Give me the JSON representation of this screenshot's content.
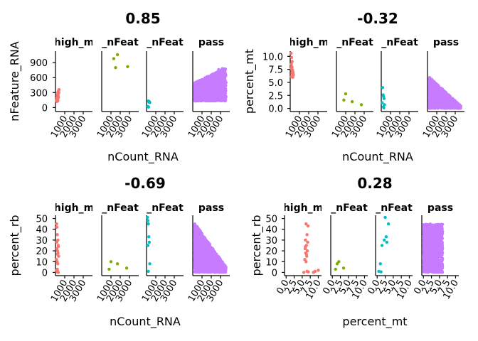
{
  "chart_data": [
    {
      "type": "scatter",
      "title": "0.85",
      "xlabel": "nCount_RNA",
      "ylabel": "nFeature_RNA",
      "facets": [
        "high_m",
        "_nFeat",
        "_nFeat",
        "pass"
      ],
      "xlim": [
        0,
        4000
      ],
      "x_ticks": [
        "1000",
        "2000",
        "3000"
      ],
      "ylim": [
        -80,
        1130
      ],
      "y_ticks": [
        "0",
        "300",
        "600",
        "900"
      ],
      "series": [
        {
          "facet": 0,
          "color": "#F8766D",
          "points": [
            [
              120,
              150
            ],
            [
              200,
              180
            ],
            [
              260,
              230
            ],
            [
              300,
              280
            ],
            [
              340,
              340
            ],
            [
              380,
              360
            ],
            [
              150,
              200
            ],
            [
              220,
              160
            ],
            [
              280,
              190
            ],
            [
              250,
              300
            ],
            [
              180,
              250
            ],
            [
              320,
              210
            ],
            [
              140,
              120
            ],
            [
              230,
              130
            ],
            [
              290,
              260
            ],
            [
              360,
              300
            ],
            [
              210,
              220
            ],
            [
              170,
              170
            ],
            [
              310,
              320
            ],
            [
              260,
              140
            ]
          ]
        },
        {
          "facet": 1,
          "color": "#7CAE00",
          "points": [
            [
              1300,
              980
            ],
            [
              1500,
              800
            ],
            [
              1700,
              1060
            ],
            [
              2800,
              820
            ]
          ]
        },
        {
          "facet": 2,
          "color": "#00BFC4",
          "points": [
            [
              200,
              130
            ],
            [
              250,
              110
            ],
            [
              300,
              120
            ],
            [
              350,
              100
            ],
            [
              150,
              20
            ],
            [
              220,
              10
            ]
          ]
        },
        {
          "facet": 3,
          "color": "#C77CFF",
          "dense": {
            "count": 1400,
            "x_range": [
              200,
              3600
            ],
            "y_min": 130,
            "y_max_at_x0": 500,
            "y_max_at_x1": 800
          },
          "points": [
            [
              3200,
              780
            ],
            [
              3500,
              750
            ],
            [
              3400,
              640
            ],
            [
              3000,
              700
            ],
            [
              2800,
              760
            ],
            [
              3600,
              500
            ]
          ]
        }
      ]
    },
    {
      "type": "scatter",
      "title": "-0.32",
      "xlabel": "nCount_RNA",
      "ylabel": "percent_mt",
      "facets": [
        "high_m",
        "_nFeat",
        "_nFeat",
        "pass"
      ],
      "xlim": [
        0,
        4000
      ],
      "x_ticks": [
        "1000",
        "2000",
        "3000"
      ],
      "ylim": [
        -0.6,
        11
      ],
      "y_ticks": [
        "0.0",
        "2.5",
        "5.0",
        "7.5",
        "10.0"
      ],
      "series": [
        {
          "facet": 0,
          "color": "#F8766D",
          "points": [
            [
              100,
              10.6
            ],
            [
              150,
              9.8
            ],
            [
              120,
              8.5
            ],
            [
              200,
              7.9
            ],
            [
              250,
              7.4
            ],
            [
              300,
              7.0
            ],
            [
              180,
              6.8
            ],
            [
              260,
              6.3
            ],
            [
              140,
              6.1
            ],
            [
              320,
              6.6
            ],
            [
              220,
              7.2
            ],
            [
              160,
              8.0
            ],
            [
              280,
              6.0
            ],
            [
              340,
              6.4
            ],
            [
              210,
              9.0
            ],
            [
              130,
              7.6
            ]
          ]
        },
        {
          "facet": 1,
          "color": "#7CAE00",
          "points": [
            [
              1000,
              2.8
            ],
            [
              800,
              1.6
            ],
            [
              1700,
              1.3
            ],
            [
              2700,
              0.7
            ]
          ]
        },
        {
          "facet": 2,
          "color": "#00BFC4",
          "points": [
            [
              150,
              4.0
            ],
            [
              200,
              2.6
            ],
            [
              250,
              2.3
            ],
            [
              300,
              1.9
            ],
            [
              100,
              1.1
            ],
            [
              350,
              0.7
            ],
            [
              220,
              0.3
            ],
            [
              280,
              0.1
            ]
          ]
        },
        {
          "facet": 3,
          "color": "#C77CFF",
          "dense": {
            "count": 1400,
            "x_range": [
              200,
              3600
            ],
            "y_min": 0,
            "y_max_at_x0": 6,
            "y_max_at_x1": 0.5
          },
          "points": []
        }
      ]
    },
    {
      "type": "scatter",
      "title": "-0.69",
      "xlabel": "nCount_RNA",
      "ylabel": "percent_rb",
      "facets": [
        "high_m",
        "_nFeat",
        "_nFeat",
        "pass"
      ],
      "xlim": [
        0,
        4000
      ],
      "x_ticks": [
        "1000",
        "2000",
        "3000"
      ],
      "ylim": [
        -3,
        53
      ],
      "y_ticks": [
        "0",
        "10",
        "20",
        "30",
        "40",
        "50"
      ],
      "series": [
        {
          "facet": 0,
          "color": "#F8766D",
          "points": [
            [
              120,
              45
            ],
            [
              150,
              42
            ],
            [
              200,
              35
            ],
            [
              260,
              30
            ],
            [
              300,
              25
            ],
            [
              150,
              22
            ],
            [
              220,
              20
            ],
            [
              280,
              18
            ],
            [
              340,
              15
            ],
            [
              100,
              12
            ],
            [
              180,
              10
            ],
            [
              250,
              8
            ],
            [
              320,
              24
            ],
            [
              140,
              28
            ],
            [
              210,
              17
            ],
            [
              120,
              2
            ],
            [
              160,
              0.5
            ],
            [
              240,
              1
            ],
            [
              300,
              0
            ],
            [
              200,
              3
            ]
          ]
        },
        {
          "facet": 1,
          "color": "#7CAE00",
          "points": [
            [
              1000,
              10
            ],
            [
              800,
              3
            ],
            [
              1700,
              8
            ],
            [
              2700,
              4
            ]
          ]
        },
        {
          "facet": 2,
          "color": "#00BFC4",
          "points": [
            [
              100,
              51
            ],
            [
              150,
              48
            ],
            [
              200,
              45
            ],
            [
              250,
              33
            ],
            [
              300,
              28
            ],
            [
              150,
              25
            ],
            [
              350,
              8
            ],
            [
              200,
              1
            ]
          ]
        },
        {
          "facet": 3,
          "color": "#C77CFF",
          "dense": {
            "count": 1400,
            "x_range": [
              200,
              3600
            ],
            "y_min": 0,
            "y_max_at_x0": 46,
            "y_max_at_x1": 5
          },
          "points": []
        }
      ]
    },
    {
      "type": "scatter",
      "title": "0.28",
      "xlabel": "percent_mt",
      "ylabel": "percent_rb",
      "facets": [
        "high_m",
        "_nFeat",
        "_nFeat",
        "pass"
      ],
      "xlim": [
        -0.5,
        11
      ],
      "x_ticks": [
        "0.0",
        "2.5",
        "5.0",
        "7.5",
        "10.0"
      ],
      "ylim": [
        -3,
        53
      ],
      "y_ticks": [
        "0",
        "10",
        "20",
        "30",
        "40",
        "50"
      ],
      "series": [
        {
          "facet": 0,
          "color": "#F8766D",
          "points": [
            [
              6.2,
              45
            ],
            [
              6.8,
              43
            ],
            [
              6.5,
              35
            ],
            [
              6.0,
              30
            ],
            [
              6.3,
              25
            ],
            [
              5.9,
              22
            ],
            [
              6.6,
              20
            ],
            [
              6.1,
              18
            ],
            [
              6.4,
              15
            ],
            [
              5.8,
              12
            ],
            [
              6.7,
              28
            ],
            [
              6.2,
              10
            ],
            [
              6.0,
              24
            ],
            [
              6.3,
              17
            ],
            [
              6.5,
              1
            ],
            [
              6.9,
              0.5
            ],
            [
              8.5,
              0
            ],
            [
              10.0,
              2
            ],
            [
              9.0,
              1
            ],
            [
              5.5,
              0
            ]
          ]
        },
        {
          "facet": 1,
          "color": "#7CAE00",
          "points": [
            [
              2.0,
              10
            ],
            [
              1.5,
              8
            ],
            [
              1.0,
              3
            ],
            [
              3.5,
              4
            ]
          ]
        },
        {
          "facet": 2,
          "color": "#00BFC4",
          "points": [
            [
              2.5,
              51
            ],
            [
              3.5,
              45
            ],
            [
              2.8,
              33
            ],
            [
              3.0,
              28
            ],
            [
              1.5,
              25
            ],
            [
              2.2,
              30
            ],
            [
              1.0,
              8
            ],
            [
              0.5,
              1
            ],
            [
              1.2,
              0.5
            ]
          ]
        },
        {
          "facet": 3,
          "color": "#C77CFF",
          "dense": {
            "count": 1500,
            "x_range": [
              0,
              6
            ],
            "y_min": 0,
            "y_max_at_x0": 45,
            "y_max_at_x1": 45
          },
          "points": []
        }
      ]
    }
  ]
}
